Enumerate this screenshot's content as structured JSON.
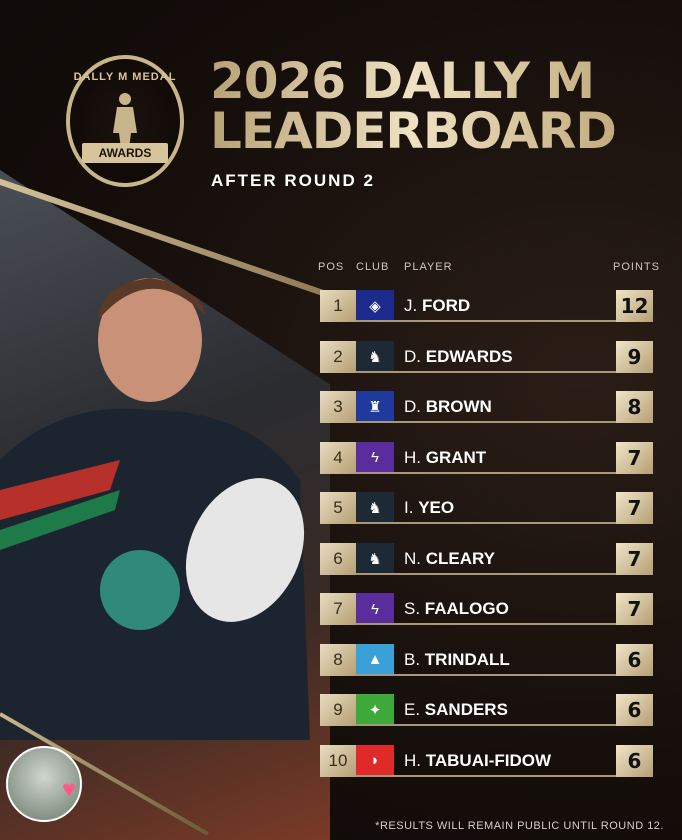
{
  "logo": {
    "arc_text": "DALLY M MEDAL",
    "ribbon_text": "AWARDS"
  },
  "header": {
    "title_line1": "2026 DALLY M",
    "title_line2": "LEADERBOARD",
    "subtitle": "AFTER ROUND 2"
  },
  "table": {
    "columns": {
      "pos": "POS",
      "club": "CLUB",
      "player": "PLAYER",
      "points": "POINTS"
    },
    "rows": [
      {
        "pos": "1",
        "initial": "J.",
        "surname": "FORD",
        "points": "12",
        "club_icon": "warriors-icon",
        "club_color": "#1c2a8c",
        "glyph": "◈"
      },
      {
        "pos": "2",
        "initial": "D.",
        "surname": "EDWARDS",
        "points": "9",
        "club_icon": "panthers-icon",
        "club_color": "#1d2a36",
        "glyph": "♞"
      },
      {
        "pos": "3",
        "initial": "D.",
        "surname": "BROWN",
        "points": "8",
        "club_icon": "knights-icon",
        "club_color": "#1f3a9c",
        "glyph": "♜"
      },
      {
        "pos": "4",
        "initial": "H.",
        "surname": "GRANT",
        "points": "7",
        "club_icon": "storm-icon",
        "club_color": "#5a2d9c",
        "glyph": "ϟ"
      },
      {
        "pos": "5",
        "initial": "I.",
        "surname": "YEO",
        "points": "7",
        "club_icon": "panthers-icon",
        "club_color": "#1d2a36",
        "glyph": "♞"
      },
      {
        "pos": "6",
        "initial": "N.",
        "surname": "CLEARY",
        "points": "7",
        "club_icon": "panthers-icon",
        "club_color": "#1d2a36",
        "glyph": "♞"
      },
      {
        "pos": "7",
        "initial": "S.",
        "surname": "FAALOGO",
        "points": "7",
        "club_icon": "storm-icon",
        "club_color": "#5a2d9c",
        "glyph": "ϟ"
      },
      {
        "pos": "8",
        "initial": "B.",
        "surname": "TRINDALL",
        "points": "6",
        "club_icon": "sharks-icon",
        "club_color": "#3aa0d8",
        "glyph": "▲"
      },
      {
        "pos": "9",
        "initial": "E.",
        "surname": "SANDERS",
        "points": "6",
        "club_icon": "raiders-icon",
        "club_color": "#3fa83a",
        "glyph": "✦"
      },
      {
        "pos": "10",
        "initial": "H.",
        "surname": "TABUAI-FIDOW",
        "points": "6",
        "club_icon": "dolphins-icon",
        "club_color": "#e02a2a",
        "glyph": "◗"
      }
    ]
  },
  "footer": {
    "note": "*RESULTS WILL REMAIN PUBLIC UNTIL ROUND 12."
  }
}
